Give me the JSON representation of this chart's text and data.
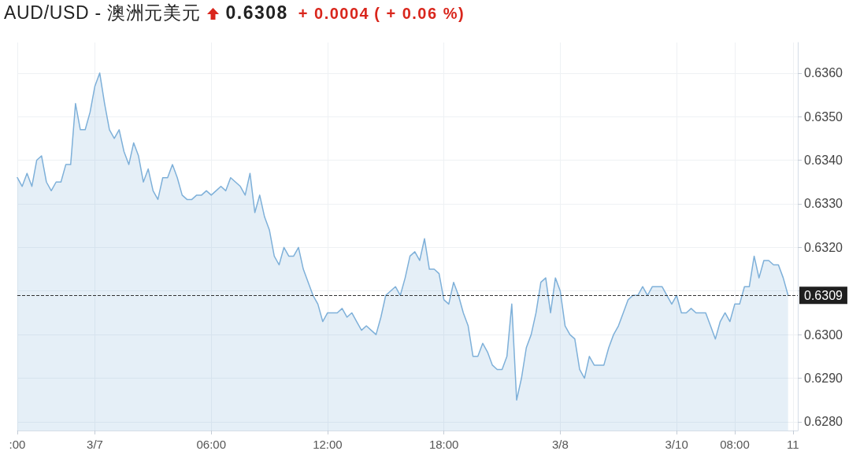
{
  "chart_data": {
    "type": "area",
    "title": "AUD/USD - 澳洲元美元",
    "annotations": [
      "0.6308",
      "+ 0.0004",
      "( + 0.06 %)"
    ],
    "categories": [
      ":00",
      null,
      null,
      null,
      null,
      null,
      null,
      null,
      null,
      null,
      null,
      null,
      null,
      null,
      null,
      null,
      "3/7",
      null,
      null,
      null,
      null,
      null,
      null,
      null,
      null,
      null,
      null,
      null,
      null,
      null,
      null,
      null,
      null,
      null,
      null,
      null,
      null,
      null,
      null,
      null,
      "06:00",
      null,
      null,
      null,
      null,
      null,
      null,
      null,
      null,
      null,
      null,
      null,
      null,
      null,
      null,
      null,
      null,
      null,
      null,
      null,
      null,
      null,
      null,
      null,
      "12:00",
      null,
      null,
      null,
      null,
      null,
      null,
      null,
      null,
      null,
      null,
      null,
      null,
      null,
      null,
      null,
      null,
      null,
      null,
      null,
      null,
      null,
      null,
      null,
      "18:00",
      null,
      null,
      null,
      null,
      null,
      null,
      null,
      null,
      null,
      null,
      null,
      null,
      null,
      null,
      null,
      null,
      null,
      null,
      null,
      null,
      null,
      null,
      null,
      "3/8",
      null,
      null,
      null,
      null,
      null,
      null,
      null,
      null,
      null,
      null,
      null,
      null,
      null,
      null,
      null,
      null,
      null,
      null,
      null,
      null,
      null,
      null,
      null,
      "3/10",
      null,
      null,
      null,
      null,
      null,
      null,
      null,
      null,
      null,
      null,
      null,
      "08:00",
      null,
      null,
      null,
      null,
      null,
      null,
      null,
      null,
      null,
      null,
      null,
      "11",
      null
    ],
    "series": [
      {
        "color": "#7eb0d9",
        "values": [
          0.6336,
          0.6334,
          0.6337,
          0.6334,
          0.634,
          0.6341,
          0.6335,
          0.6333,
          0.6335,
          0.6335,
          0.6339,
          0.6339,
          0.6353,
          0.6347,
          0.6347,
          0.6351,
          0.6357,
          0.636,
          0.6353,
          0.6347,
          0.6345,
          0.6347,
          0.6342,
          0.6339,
          0.6344,
          0.6341,
          0.6335,
          0.6338,
          0.6333,
          0.6331,
          0.6336,
          0.6336,
          0.6339,
          0.6336,
          0.6332,
          0.6331,
          0.6331,
          0.6332,
          0.6332,
          0.6333,
          0.6332,
          0.6333,
          0.6334,
          0.6333,
          0.6336,
          0.6335,
          0.6334,
          0.6332,
          0.6337,
          0.6328,
          0.6332,
          0.6327,
          0.6324,
          0.6318,
          0.6316,
          0.632,
          0.6318,
          0.6318,
          0.632,
          0.6315,
          0.6312,
          0.6309,
          0.6307,
          0.6303,
          0.6305,
          0.6305,
          0.6305,
          0.6306,
          0.6304,
          0.6305,
          0.6303,
          0.6301,
          0.6302,
          0.6301,
          0.63,
          0.6304,
          0.6309,
          0.631,
          0.6311,
          0.6309,
          0.6313,
          0.6318,
          0.6319,
          0.6317,
          0.6322,
          0.6315,
          0.6315,
          0.6314,
          0.6308,
          0.6307,
          0.6312,
          0.6309,
          0.6305,
          0.6302,
          0.6295,
          0.6295,
          0.6298,
          0.6296,
          0.6293,
          0.6292,
          0.6292,
          0.6295,
          0.6307,
          0.6285,
          0.629,
          0.6297,
          0.63,
          0.6305,
          0.6312,
          0.6313,
          0.6305,
          0.6313,
          0.631,
          0.6302,
          0.63,
          0.6299,
          0.6292,
          0.629,
          0.6295,
          0.6293,
          0.6293,
          0.6293,
          0.6297,
          0.63,
          0.6302,
          0.6305,
          0.6308,
          0.6309,
          0.6309,
          0.6311,
          0.6309,
          0.6311,
          0.6311,
          0.6311,
          0.6309,
          0.6307,
          0.6309,
          0.6305,
          0.6305,
          0.6306,
          0.6305,
          0.6305,
          0.6305,
          0.6302,
          0.6299,
          0.6303,
          0.6305,
          0.6303,
          0.6307,
          0.6307,
          0.6311,
          0.6311,
          0.6318,
          0.6313,
          0.6317,
          0.6317,
          0.6316,
          0.6316,
          0.6313,
          0.6309,
          null,
          null
        ]
      }
    ],
    "ylim": [
      0.6278,
      0.6367
    ],
    "yticks": [
      {
        "value": 0.628,
        "label": "0.6280"
      },
      {
        "value": 0.629,
        "label": "0.6290"
      },
      {
        "value": 0.63,
        "label": "0.6300"
      },
      {
        "value": 0.631,
        "label": null
      },
      {
        "value": 0.632,
        "label": "0.6320"
      },
      {
        "value": 0.633,
        "label": "0.6330"
      },
      {
        "value": 0.634,
        "label": "0.6340"
      },
      {
        "value": 0.635,
        "label": "0.6350"
      },
      {
        "value": 0.636,
        "label": "0.6360"
      }
    ],
    "grid": true,
    "marker": "none",
    "ref_lines": [
      {
        "axis": "y",
        "value": 0.6309,
        "label": "0.6309",
        "color": "#333333",
        "line_style": "dashed"
      }
    ]
  }
}
